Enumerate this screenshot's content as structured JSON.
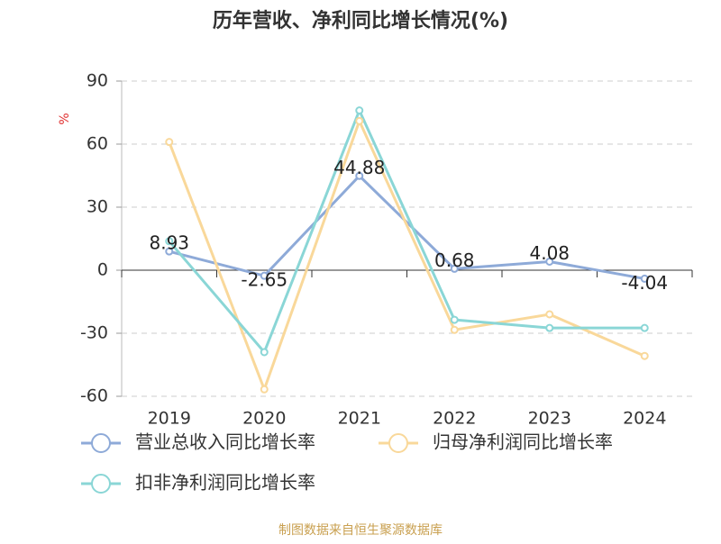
{
  "chart_data": {
    "type": "line",
    "title": "历年营收、净利同比增长情况(%)",
    "y_label": "%",
    "source": "制图数据来自恒生聚源数据库",
    "categories": [
      "2019",
      "2020",
      "2021",
      "2022",
      "2023",
      "2024"
    ],
    "series": [
      {
        "name": "营业总收入同比增长率",
        "color": "#8eaad8",
        "values": [
          8.93,
          -2.65,
          44.88,
          0.68,
          4.08,
          -4.04
        ],
        "show_values": true
      },
      {
        "name": "归母净利润同比增长率",
        "color": "#f9d89a",
        "values": [
          61,
          -56.7,
          71,
          -28.4,
          -21,
          -40.8
        ],
        "show_values": false
      },
      {
        "name": "扣非净利润同比增长率",
        "color": "#8ad6d6",
        "values": [
          13.8,
          -39,
          76,
          -23.6,
          -27.5,
          -27.5
        ],
        "show_values": false
      }
    ],
    "ylim": [
      -60,
      90
    ],
    "yticks": [
      -60,
      -30,
      0,
      30,
      60,
      90
    ],
    "grid": true
  }
}
